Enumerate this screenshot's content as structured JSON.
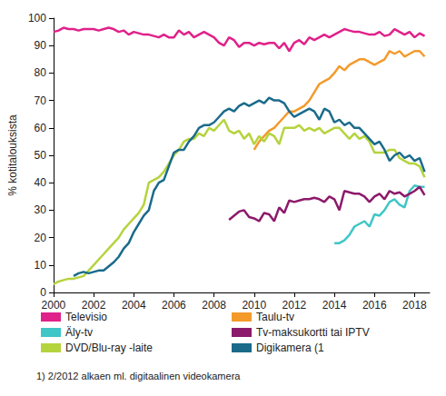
{
  "chart_data": {
    "type": "line",
    "y_label": "% kotitalouksista",
    "annotations": [
      "1) 2/2012 alkaen ml. digitaalinen videokamera"
    ],
    "x": [
      2000,
      2000.25,
      2000.5,
      2000.75,
      2001,
      2001.25,
      2001.5,
      2001.75,
      2002,
      2002.25,
      2002.5,
      2002.75,
      2003,
      2003.25,
      2003.5,
      2003.75,
      2004,
      2004.25,
      2004.5,
      2004.75,
      2005,
      2005.25,
      2005.5,
      2005.75,
      2006,
      2006.25,
      2006.5,
      2006.75,
      2007,
      2007.25,
      2007.5,
      2007.75,
      2008,
      2008.25,
      2008.5,
      2008.75,
      2009,
      2009.25,
      2009.5,
      2009.75,
      2010,
      2010.25,
      2010.5,
      2010.75,
      2011,
      2011.25,
      2011.5,
      2011.75,
      2012,
      2012.25,
      2012.5,
      2012.75,
      2013,
      2013.25,
      2013.5,
      2013.75,
      2014,
      2014.25,
      2014.5,
      2014.75,
      2015,
      2015.25,
      2015.5,
      2015.75,
      2016,
      2016.25,
      2016.5,
      2016.75,
      2017,
      2017.25,
      2017.5,
      2017.75,
      2018,
      2018.25,
      2018.5
    ],
    "series": [
      {
        "name": "Televisio",
        "color": "#e0218a",
        "values": [
          95,
          95.5,
          96.5,
          96,
          96,
          95.5,
          96,
          96,
          96,
          95.5,
          96,
          96.5,
          96,
          95,
          95.5,
          94,
          95,
          94.5,
          94,
          94,
          93.5,
          93,
          94,
          93,
          93,
          95.5,
          94,
          95,
          93,
          94,
          95,
          94,
          93,
          91,
          90,
          93,
          92,
          89.5,
          91,
          91,
          90,
          91,
          90.5,
          91,
          91,
          89,
          91,
          88,
          91,
          92,
          90.5,
          93,
          92,
          93,
          94,
          93,
          94,
          95,
          96,
          95.5,
          95,
          95,
          94.5,
          94,
          94,
          95,
          93.5,
          94,
          96,
          95,
          94,
          95,
          93,
          94.5,
          93.5
        ]
      },
      {
        "name": "Taulu-tv",
        "color": "#f39a2b",
        "values": [
          null,
          null,
          null,
          null,
          null,
          null,
          null,
          null,
          null,
          null,
          null,
          null,
          null,
          null,
          null,
          null,
          null,
          null,
          null,
          null,
          null,
          null,
          null,
          null,
          null,
          null,
          null,
          null,
          null,
          null,
          null,
          null,
          null,
          null,
          null,
          null,
          null,
          null,
          null,
          null,
          52,
          55,
          57,
          59,
          60,
          62,
          64,
          66,
          66,
          67,
          68,
          70,
          73,
          76,
          77,
          78,
          80,
          82.5,
          81,
          83,
          84,
          85,
          85,
          84,
          83,
          84,
          85,
          88,
          87,
          88,
          86,
          87,
          88,
          88,
          86
        ]
      },
      {
        "name": "Äly-tv",
        "color": "#3fc6c6",
        "values": [
          null,
          null,
          null,
          null,
          null,
          null,
          null,
          null,
          null,
          null,
          null,
          null,
          null,
          null,
          null,
          null,
          null,
          null,
          null,
          null,
          null,
          null,
          null,
          null,
          null,
          null,
          null,
          null,
          null,
          null,
          null,
          null,
          null,
          null,
          null,
          null,
          null,
          null,
          null,
          null,
          null,
          null,
          null,
          null,
          null,
          null,
          null,
          null,
          null,
          null,
          null,
          null,
          null,
          null,
          null,
          null,
          18,
          18,
          19,
          21,
          24,
          25,
          26,
          24,
          28.5,
          28,
          30,
          33,
          34,
          32,
          31,
          37,
          39,
          38.5,
          38.5
        ]
      },
      {
        "name": "Tv-maksukortti tai IPTV",
        "color": "#8c1a6b",
        "values": [
          null,
          null,
          null,
          null,
          null,
          null,
          null,
          null,
          null,
          null,
          null,
          null,
          null,
          null,
          null,
          null,
          null,
          null,
          null,
          null,
          null,
          null,
          null,
          null,
          null,
          null,
          null,
          null,
          null,
          null,
          null,
          null,
          null,
          null,
          null,
          26.5,
          28,
          29.5,
          30,
          27.5,
          27,
          26,
          29,
          28.5,
          26,
          31,
          29,
          33.5,
          33,
          33.5,
          34,
          34,
          34.5,
          34,
          33,
          35,
          34,
          30,
          37,
          36.5,
          36,
          36,
          35,
          33,
          35,
          36,
          34,
          37,
          36,
          36.5,
          35,
          36,
          37,
          38.5,
          35.5
        ]
      },
      {
        "name": "DVD/Blu-ray -laite",
        "color": "#b5d33d",
        "values": [
          3,
          4,
          4.5,
          5,
          5,
          5.5,
          6,
          8,
          10,
          12,
          14,
          16,
          18,
          20,
          23,
          25,
          27,
          29,
          32,
          40,
          41,
          42,
          44,
          47,
          50,
          52,
          55,
          56,
          56,
          58,
          57,
          60,
          59,
          61,
          63,
          59,
          58,
          59,
          56,
          58,
          54,
          57,
          55,
          58,
          57,
          54,
          60,
          60,
          60,
          61,
          59,
          60,
          59,
          60,
          58,
          59,
          60,
          60,
          58,
          56,
          58,
          56,
          57,
          55,
          51,
          51,
          51,
          52,
          52,
          49,
          48,
          47,
          47,
          46,
          42
        ]
      },
      {
        "name": "Digikamera (1",
        "color": "#1a6b8a",
        "values": [
          null,
          null,
          null,
          null,
          6,
          7,
          7.5,
          7,
          7.5,
          8,
          8,
          9.5,
          11,
          13,
          16,
          18,
          22,
          25,
          28,
          30,
          37,
          40,
          41,
          46,
          51,
          52,
          52,
          55,
          57,
          60,
          61,
          61,
          62,
          64,
          66,
          67,
          66,
          68,
          69,
          68,
          69,
          70,
          69,
          71,
          70,
          70,
          69,
          66,
          64,
          65,
          66,
          67,
          66,
          63,
          67,
          66,
          62,
          63,
          61,
          62,
          60,
          60,
          58,
          56,
          54,
          55,
          52,
          48,
          50,
          51,
          49,
          50,
          48,
          49,
          44
        ]
      }
    ],
    "xlim": [
      2000,
      2018.75
    ],
    "xticks": [
      2000,
      2002,
      2004,
      2006,
      2008,
      2010,
      2012,
      2014,
      2016,
      2018
    ],
    "ylim": [
      0,
      100
    ],
    "yticks": [
      0,
      10,
      20,
      30,
      40,
      50,
      60,
      70,
      80,
      90,
      100
    ],
    "grid": false,
    "legend": "bottom"
  }
}
